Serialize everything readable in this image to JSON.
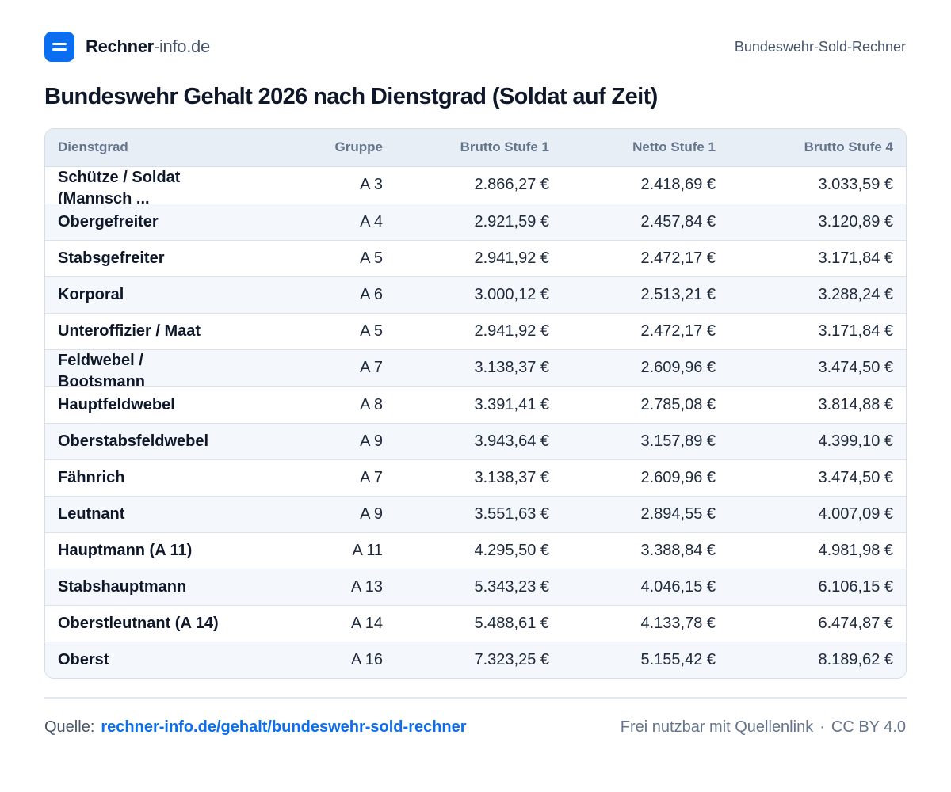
{
  "header": {
    "brand_bold": "Rechner",
    "brand_light": "-info.de",
    "right_label": "Bundeswehr-Sold-Rechner"
  },
  "page_title": "Bundeswehr Gehalt 2026 nach Dienstgrad (Soldat auf Zeit)",
  "table": {
    "columns": [
      "Dienstgrad",
      "Gruppe",
      "Brutto Stufe 1",
      "Netto Stufe 1",
      "Brutto Stufe 4"
    ],
    "rows": [
      [
        "Schütze / Soldat (Mannsch ...",
        "A 3",
        "2.866,27 €",
        "2.418,69 €",
        "3.033,59 €"
      ],
      [
        "Obergefreiter",
        "A 4",
        "2.921,59 €",
        "2.457,84 €",
        "3.120,89 €"
      ],
      [
        "Stabsgefreiter",
        "A 5",
        "2.941,92 €",
        "2.472,17 €",
        "3.171,84 €"
      ],
      [
        "Korporal",
        "A 6",
        "3.000,12 €",
        "2.513,21 €",
        "3.288,24 €"
      ],
      [
        "Unteroffizier / Maat",
        "A 5",
        "2.941,92 €",
        "2.472,17 €",
        "3.171,84 €"
      ],
      [
        "Feldwebel / Bootsmann",
        "A 7",
        "3.138,37 €",
        "2.609,96 €",
        "3.474,50 €"
      ],
      [
        "Hauptfeldwebel",
        "A 8",
        "3.391,41 €",
        "2.785,08 €",
        "3.814,88 €"
      ],
      [
        "Oberstabsfeldwebel",
        "A 9",
        "3.943,64 €",
        "3.157,89 €",
        "4.399,10 €"
      ],
      [
        "Fähnrich",
        "A 7",
        "3.138,37 €",
        "2.609,96 €",
        "3.474,50 €"
      ],
      [
        "Leutnant",
        "A 9",
        "3.551,63 €",
        "2.894,55 €",
        "4.007,09 €"
      ],
      [
        "Hauptmann (A 11)",
        "A 11",
        "4.295,50 €",
        "3.388,84 €",
        "4.981,98 €"
      ],
      [
        "Stabshauptmann",
        "A 13",
        "5.343,23 €",
        "4.046,15 €",
        "6.106,15 €"
      ],
      [
        "Oberstleutnant (A 14)",
        "A 14",
        "5.488,61 €",
        "4.133,78 €",
        "6.474,87 €"
      ],
      [
        "Oberst",
        "A 16",
        "7.323,25 €",
        "5.155,42 €",
        "8.189,62 €"
      ]
    ]
  },
  "footer": {
    "source_label": "Quelle:",
    "source_link": "rechner-info.de/gehalt/bundeswehr-sold-rechner",
    "license_text": "Frei nutzbar mit Quellenlink",
    "separator": "·",
    "license": "CC BY 4.0"
  }
}
